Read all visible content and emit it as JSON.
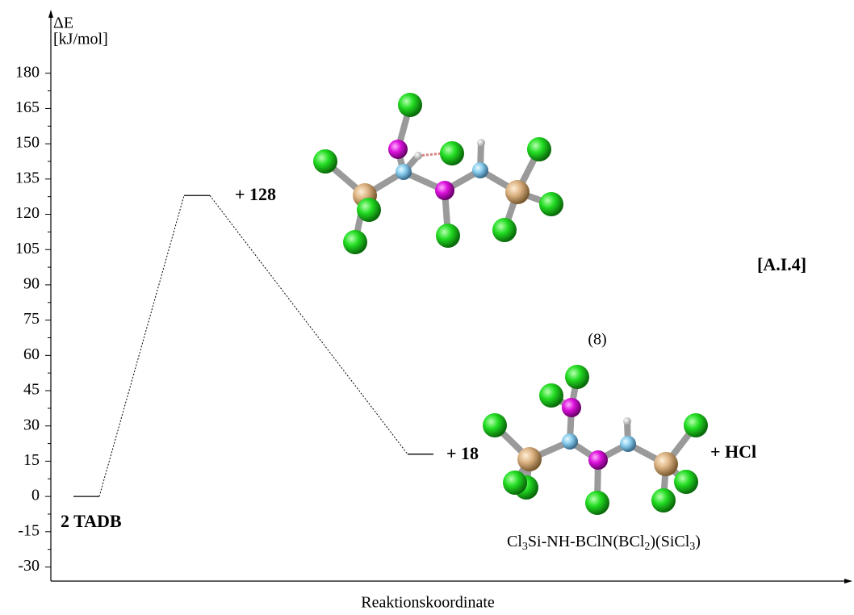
{
  "chart_data": {
    "type": "energy_profile",
    "y_label": "ΔE",
    "y_unit": "[kJ/mol]",
    "x_label": "Reaktionskoordinate",
    "categories": [
      "2 TADB",
      null,
      null
    ],
    "values": [
      0,
      128,
      18
    ],
    "value_labels": [
      null,
      "+ 128",
      "+ 18"
    ],
    "ylim": [
      -36,
      206
    ],
    "yticks": [
      -30,
      -15,
      0,
      15,
      30,
      45,
      60,
      75,
      90,
      105,
      120,
      135,
      150,
      165,
      180
    ],
    "yminorticks": [
      -22.5,
      -7.5,
      7.5,
      22.5,
      37.5,
      52.5,
      67.5,
      82.5,
      97.5,
      112.5,
      127.5,
      142.5,
      157.5,
      172.5
    ],
    "annotations": [
      "+ HCl",
      "[A.I.4]",
      "(8)"
    ],
    "formula": [
      "Cl",
      "3",
      "Si-NH-BClN(BCl",
      "2",
      ")(SiCl",
      "3",
      ")"
    ]
  }
}
